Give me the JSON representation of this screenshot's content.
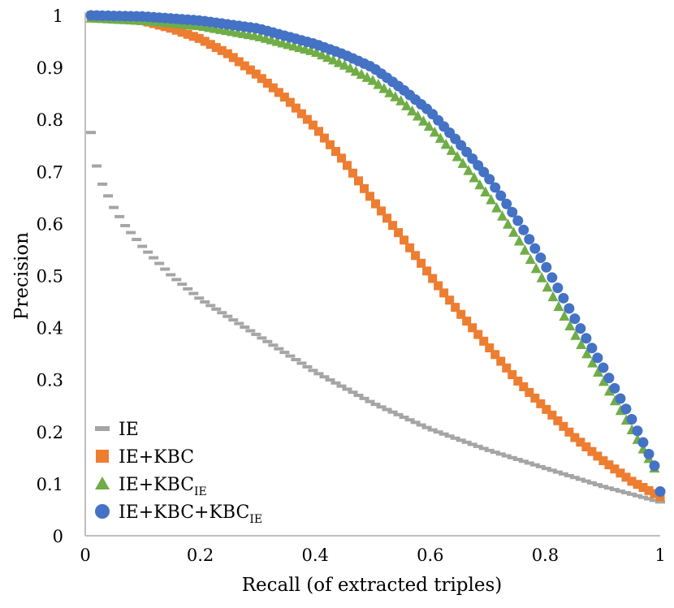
{
  "chart_data": {
    "type": "scatter",
    "title": "",
    "xlabel": "Recall (of extracted triples)",
    "ylabel": "Precision",
    "xlim": [
      0,
      1
    ],
    "ylim": [
      0,
      1
    ],
    "xticks": [
      0,
      0.2,
      0.4,
      0.6,
      0.8,
      1
    ],
    "yticks": [
      0,
      0.1,
      0.2,
      0.3,
      0.4,
      0.5,
      0.6,
      0.7,
      0.8,
      0.9,
      1
    ],
    "xtick_labels": [
      "0",
      "0.2",
      "0.4",
      "0.6",
      "0.8",
      "1"
    ],
    "ytick_labels": [
      "0",
      "0.1",
      "0.2",
      "0.3",
      "0.4",
      "0.5",
      "0.6",
      "0.7",
      "0.8",
      "0.9",
      "1"
    ],
    "grid": false,
    "legend_position": "bottom-left",
    "series": [
      {
        "name": "IE",
        "label_main": "IE",
        "label_sub": "",
        "marker": "dash",
        "color": "#a5a5a5",
        "x": [
          0.01,
          0.02,
          0.03,
          0.05,
          0.07,
          0.1,
          0.15,
          0.2,
          0.3,
          0.4,
          0.5,
          0.6,
          0.7,
          0.8,
          0.9,
          1.0
        ],
        "y": [
          0.775,
          0.71,
          0.675,
          0.63,
          0.595,
          0.555,
          0.5,
          0.455,
          0.385,
          0.315,
          0.255,
          0.205,
          0.165,
          0.13,
          0.095,
          0.065
        ]
      },
      {
        "name": "IE+KBC",
        "label_main": "IE+KBC",
        "label_sub": "",
        "marker": "square",
        "color": "#ed7d31",
        "x": [
          0.01,
          0.1,
          0.15,
          0.2,
          0.25,
          0.3,
          0.35,
          0.4,
          0.45,
          0.5,
          0.55,
          0.6,
          0.65,
          0.7,
          0.75,
          0.8,
          0.85,
          0.9,
          0.95,
          1.0
        ],
        "y": [
          1.0,
          0.99,
          0.975,
          0.955,
          0.925,
          0.885,
          0.84,
          0.785,
          0.72,
          0.645,
          0.575,
          0.5,
          0.43,
          0.365,
          0.3,
          0.245,
          0.19,
          0.145,
          0.105,
          0.075
        ]
      },
      {
        "name": "IE+KBC_IE",
        "label_main": "IE+KBC",
        "label_sub": "IE",
        "marker": "triangle",
        "color": "#70ad47",
        "x": [
          0.01,
          0.1,
          0.2,
          0.3,
          0.4,
          0.45,
          0.5,
          0.55,
          0.6,
          0.65,
          0.7,
          0.75,
          0.8,
          0.85,
          0.9,
          0.95,
          0.99
        ],
        "y": [
          0.995,
          0.99,
          0.98,
          0.96,
          0.93,
          0.905,
          0.875,
          0.835,
          0.785,
          0.725,
          0.655,
          0.575,
          0.485,
          0.39,
          0.3,
          0.205,
          0.13
        ]
      },
      {
        "name": "IE+KBC+KBC_IE",
        "label_main": "IE+KBC+KBC",
        "label_sub": "IE",
        "marker": "circle",
        "color": "#4472c4",
        "x": [
          0.01,
          0.1,
          0.2,
          0.3,
          0.4,
          0.45,
          0.5,
          0.55,
          0.6,
          0.65,
          0.7,
          0.75,
          0.8,
          0.85,
          0.9,
          0.95,
          0.99,
          1.0
        ],
        "y": [
          1.0,
          0.998,
          0.99,
          0.975,
          0.945,
          0.925,
          0.9,
          0.86,
          0.815,
          0.755,
          0.69,
          0.61,
          0.52,
          0.42,
          0.325,
          0.225,
          0.135,
          0.085
        ]
      }
    ]
  }
}
